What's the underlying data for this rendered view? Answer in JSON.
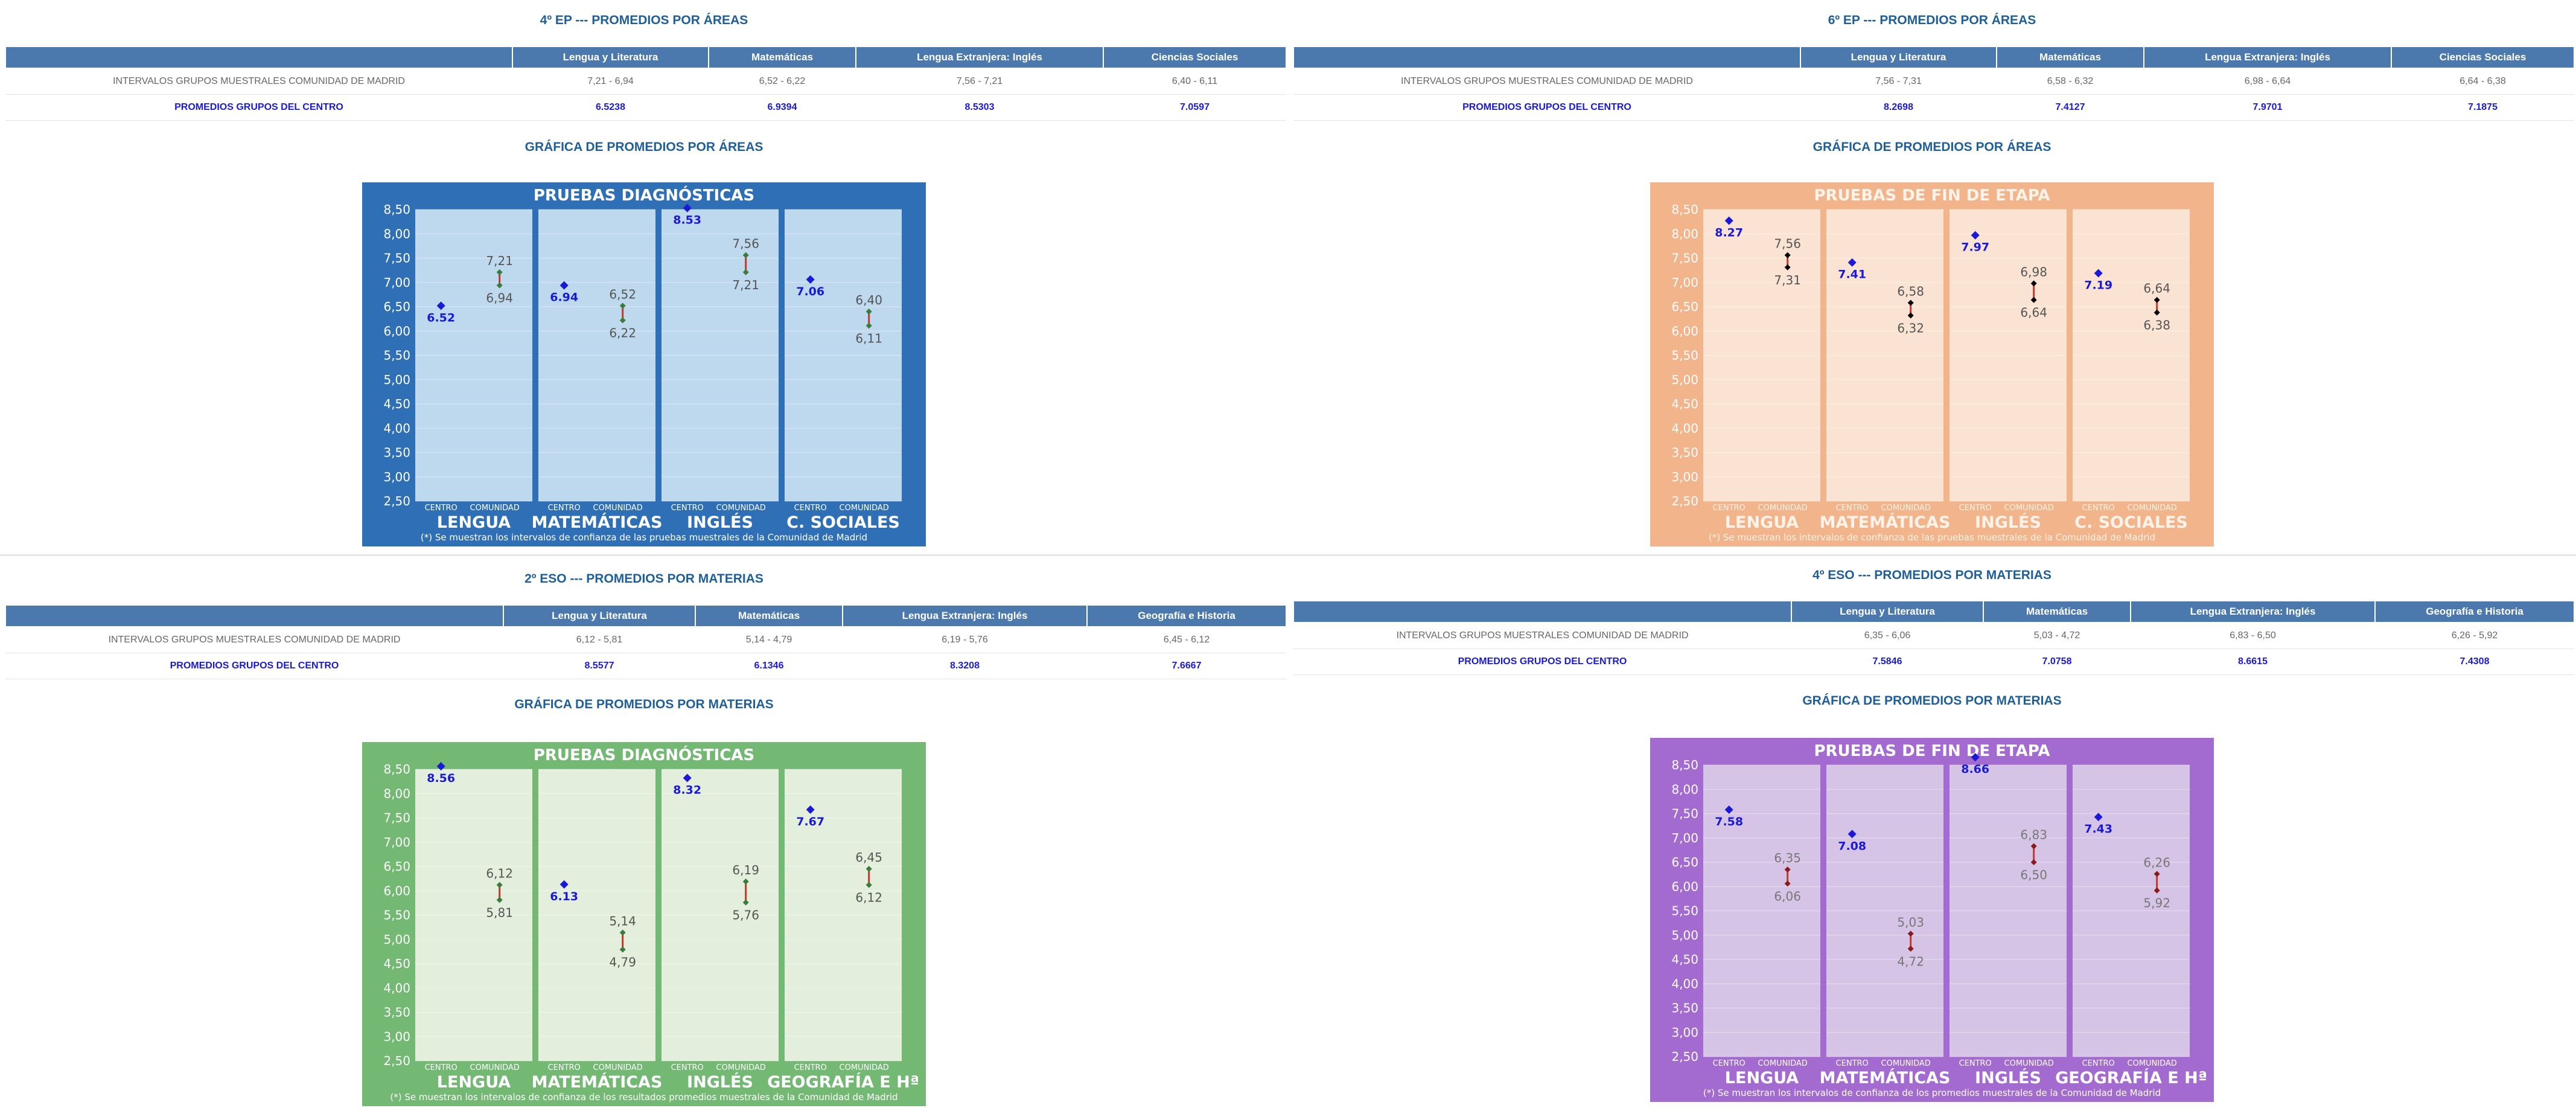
{
  "sections": [
    {
      "title": "4º EP --- PROMEDIOS POR ÁREAS",
      "headers": [
        "Lengua y Literatura",
        "Matemáticas",
        "Lengua Extranjera: Inglés",
        "Ciencias Sociales"
      ],
      "row1_label": "INTERVALOS GRUPOS MUESTRALES COMUNIDAD DE MADRID",
      "row1": [
        "7,21 - 6,94",
        "6,52 - 6,22",
        "7,56 - 7,21",
        "6,40 - 6,11"
      ],
      "row2_label": "PROMEDIOS GRUPOS DEL CENTRO",
      "row2": [
        "6.5238",
        "6.9394",
        "8.5303",
        "7.0597"
      ],
      "graph_title": "GRÁFICA DE PROMEDIOS POR ÁREAS"
    },
    {
      "title": "6º EP --- PROMEDIOS POR ÁREAS",
      "headers": [
        "Lengua y Literatura",
        "Matemáticas",
        "Lengua Extranjera: Inglés",
        "Ciencias Sociales"
      ],
      "row1_label": "INTERVALOS GRUPOS MUESTRALES COMUNIDAD DE MADRID",
      "row1": [
        "7,56 - 7,31",
        "6,58 - 6,32",
        "6,98 - 6,64",
        "6,64 - 6,38"
      ],
      "row2_label": "PROMEDIOS GRUPOS DEL CENTRO",
      "row2": [
        "8.2698",
        "7.4127",
        "7.9701",
        "7.1875"
      ],
      "graph_title": "GRÁFICA DE PROMEDIOS POR ÁREAS"
    },
    {
      "title": "2º ESO --- PROMEDIOS POR MATERIAS",
      "headers": [
        "Lengua y Literatura",
        "Matemáticas",
        "Lengua Extranjera: Inglés",
        "Geografía e Historia"
      ],
      "row1_label": "INTERVALOS GRUPOS MUESTRALES COMUNIDAD DE MADRID",
      "row1": [
        "6,12 - 5,81",
        "5,14 - 4,79",
        "6,19 - 5,76",
        "6,45 - 6,12"
      ],
      "row2_label": "PROMEDIOS GRUPOS DEL CENTRO",
      "row2": [
        "8.5577",
        "6.1346",
        "8.3208",
        "7.6667"
      ],
      "graph_title": "GRÁFICA DE PROMEDIOS POR MATERIAS"
    },
    {
      "title": "4º ESO --- PROMEDIOS POR MATERIAS",
      "headers": [
        "Lengua y Literatura",
        "Matemáticas",
        "Lengua Extranjera: Inglés",
        "Geografía e Historia"
      ],
      "row1_label": "INTERVALOS GRUPOS MUESTRALES COMUNIDAD DE MADRID",
      "row1": [
        "6,35 - 6,06",
        "5,03 - 4,72",
        "6,83 - 6,50",
        "6,26 - 5,92"
      ],
      "row2_label": "PROMEDIOS GRUPOS DEL CENTRO",
      "row2": [
        "7.5846",
        "7.0758",
        "8.6615",
        "7.4308"
      ],
      "graph_title": "GRÁFICA DE PROMEDIOS POR MATERIAS"
    }
  ],
  "chart_data": [
    {
      "type": "scatter",
      "title": "PRUEBAS DIAGNÓSTICAS",
      "categories": [
        "LENGUA",
        "MATEMÁTICAS",
        "INGLÉS",
        "C. SOCIALES"
      ],
      "sub_labels": [
        "CENTRO",
        "COMUNIDAD"
      ],
      "yticks": [
        "8,50",
        "8,00",
        "7,50",
        "7,00",
        "6,50",
        "6,00",
        "5,50",
        "5,00",
        "4,50",
        "4,00",
        "3,50",
        "3,00",
        "2,50"
      ],
      "ylim": [
        2.5,
        8.5
      ],
      "centro": [
        6.52,
        6.94,
        8.53,
        7.06
      ],
      "centro_labels": [
        "6.52",
        "6.94",
        "8.53",
        "7.06"
      ],
      "intervals": [
        [
          7.21,
          6.94
        ],
        [
          6.52,
          6.22
        ],
        [
          7.56,
          7.21
        ],
        [
          6.4,
          6.11
        ]
      ],
      "interval_labels": [
        [
          "7,21",
          "6,94"
        ],
        [
          "6,52",
          "6,22"
        ],
        [
          "7,56",
          "7,21"
        ],
        [
          "6,40",
          "6,11"
        ]
      ],
      "footnote": "(*) Se muestran los intervalos de confianza de las pruebas muestrales de la Comunidad de Madrid",
      "colors": {
        "frame": "#2f6fb5",
        "panel": "#bed8ee",
        "title": "#ffffff",
        "ytick": "#ffffff",
        "cat": "#ffffff",
        "sub": "#ffffff",
        "foot": "#ffffff",
        "centro": "#1a1ad6",
        "interval_mark": "#3a7d3a",
        "interval_line": "#c0392b",
        "value": "#555555"
      }
    },
    {
      "type": "scatter",
      "title": "PRUEBAS DE FIN DE ETAPA",
      "categories": [
        "LENGUA",
        "MATEMÁTICAS",
        "INGLÉS",
        "C. SOCIALES"
      ],
      "sub_labels": [
        "CENTRO",
        "COMUNIDAD"
      ],
      "yticks": [
        "8,50",
        "8,00",
        "7,50",
        "7,00",
        "6,50",
        "6,00",
        "5,50",
        "5,00",
        "4,50",
        "4,00",
        "3,50",
        "3,00",
        "2,50"
      ],
      "ylim": [
        2.5,
        8.5
      ],
      "centro": [
        8.27,
        7.41,
        7.97,
        7.19
      ],
      "centro_labels": [
        "8.27",
        "7.41",
        "7.97",
        "7.19"
      ],
      "intervals": [
        [
          7.56,
          7.31
        ],
        [
          6.58,
          6.32
        ],
        [
          6.98,
          6.64
        ],
        [
          6.64,
          6.38
        ]
      ],
      "interval_labels": [
        [
          "7,56",
          "7,31"
        ],
        [
          "6,58",
          "6,32"
        ],
        [
          "6,98",
          "6,64"
        ],
        [
          "6,64",
          "6,38"
        ]
      ],
      "footnote": "(*) Se muestran los intervalos de confianza de las pruebas muestrales de la Comunidad de Madrid",
      "colors": {
        "frame": "#f2b48a",
        "panel": "#fbe3d3",
        "title": "#fff3ea",
        "ytick": "#ffffff",
        "cat": "#fff3ea",
        "sub": "#fff3ea",
        "foot": "#fff3ea",
        "centro": "#1a1ad6",
        "interval_mark": "#000000",
        "interval_line": "#c0392b",
        "value": "#555555"
      }
    },
    {
      "type": "scatter",
      "title": "PRUEBAS DIAGNÓSTICAS",
      "categories": [
        "LENGUA",
        "MATEMÁTICAS",
        "INGLÉS",
        "GEOGRAFÍA E Hª"
      ],
      "sub_labels": [
        "CENTRO",
        "COMUNIDAD"
      ],
      "yticks": [
        "8,50",
        "8,00",
        "7,50",
        "7,00",
        "6,50",
        "6,00",
        "5,50",
        "5,00",
        "4,50",
        "4,00",
        "3,50",
        "3,00",
        "2,50"
      ],
      "ylim": [
        2.5,
        8.5
      ],
      "centro": [
        8.56,
        6.13,
        8.32,
        7.67
      ],
      "centro_labels": [
        "8.56",
        "6.13",
        "8.32",
        "7.67"
      ],
      "intervals": [
        [
          6.12,
          5.81
        ],
        [
          5.14,
          4.79
        ],
        [
          6.19,
          5.76
        ],
        [
          6.45,
          6.12
        ]
      ],
      "interval_labels": [
        [
          "6,12",
          "5,81"
        ],
        [
          "5,14",
          "4,79"
        ],
        [
          "6,19",
          "5,76"
        ],
        [
          "6,45",
          "6,12"
        ]
      ],
      "footnote": "(*) Se muestran los intervalos de confianza de los resultados promedios muestrales de la Comunidad de Madrid",
      "colors": {
        "frame": "#73b873",
        "panel": "#e3efdc",
        "title": "#ffffff",
        "ytick": "#ffffff",
        "cat": "#ffffff",
        "sub": "#ffffff",
        "foot": "#ffffff",
        "centro": "#1a1ad6",
        "interval_mark": "#3a7d3a",
        "interval_line": "#c0392b",
        "value": "#555555"
      }
    },
    {
      "type": "scatter",
      "title": "PRUEBAS DE FIN DE ETAPA",
      "categories": [
        "LENGUA",
        "MATEMÁTICAS",
        "INGLÉS",
        "GEOGRAFÍA E Hª"
      ],
      "sub_labels": [
        "CENTRO",
        "COMUNIDAD"
      ],
      "yticks": [
        "8,50",
        "8,00",
        "7,50",
        "7,00",
        "6,50",
        "6,00",
        "5,50",
        "5,00",
        "4,50",
        "4,00",
        "3,50",
        "3,00",
        "2,50"
      ],
      "ylim": [
        2.5,
        8.5
      ],
      "centro": [
        7.58,
        7.08,
        8.66,
        7.43
      ],
      "centro_labels": [
        "7.58",
        "7.08",
        "8.66",
        "7.43"
      ],
      "intervals": [
        [
          6.35,
          6.06
        ],
        [
          5.03,
          4.72
        ],
        [
          6.83,
          6.5
        ],
        [
          6.26,
          5.92
        ]
      ],
      "interval_labels": [
        [
          "6,35",
          "6,06"
        ],
        [
          "5,03",
          "4,72"
        ],
        [
          "6,83",
          "6,50"
        ],
        [
          "6,26",
          "5,92"
        ]
      ],
      "footnote": "(*) Se muestran los intervalos de confianza de los promedios muestrales de la Comunidad de Madrid",
      "colors": {
        "frame": "#a36bd0",
        "panel": "#d6c4e6",
        "title": "#ffffff",
        "ytick": "#ffffff",
        "cat": "#ffffff",
        "sub": "#ffffff",
        "foot": "#ffffff",
        "centro": "#1a1ad6",
        "interval_mark": "#8b1a1a",
        "interval_line": "#c0392b",
        "value": "#777777"
      }
    }
  ]
}
